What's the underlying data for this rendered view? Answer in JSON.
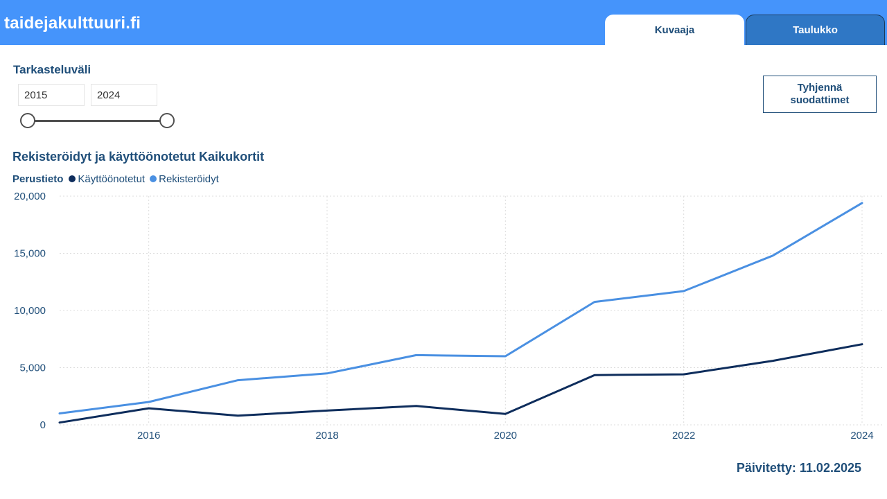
{
  "header": {
    "site_name": "taidejakulttuuri.fi",
    "tabs": [
      {
        "label": "Kuvaaja",
        "active": true
      },
      {
        "label": "Taulukko",
        "active": false
      }
    ]
  },
  "filters": {
    "range_label": "Tarkasteluväli",
    "start_year": "2015",
    "end_year": "2024",
    "clear_button": "Tyhjennä\nsuodattimet"
  },
  "legend": {
    "title": "Perustieto"
  },
  "chart_data": {
    "type": "line",
    "title": "Rekisteröidyt ja käyttöönotetut Kaikukortit",
    "xlabel": "",
    "ylabel": "",
    "x": [
      2015,
      2016,
      2017,
      2018,
      2019,
      2020,
      2021,
      2022,
      2023,
      2024
    ],
    "xticks": [
      "2016",
      "2018",
      "2020",
      "2022",
      "2024"
    ],
    "yticks": [
      "0",
      "5,000",
      "10,000",
      "15,000",
      "20,000"
    ],
    "ylim": [
      0,
      20000
    ],
    "xlim": [
      2015,
      2024
    ],
    "grid": true,
    "legend_position": "top-left",
    "series": [
      {
        "name": "Käyttöönotetut",
        "color": "#0e2d5c",
        "values": [
          200,
          1450,
          800,
          1250,
          1650,
          950,
          4350,
          4420,
          5600,
          7050
        ]
      },
      {
        "name": "Rekisteröidyt",
        "color": "#4a90e2",
        "values": [
          1000,
          2000,
          3900,
          4500,
          6100,
          6000,
          10750,
          11700,
          14800,
          19400
        ]
      }
    ]
  },
  "footer": {
    "updated": "Päivitetty: 11.02.2025"
  }
}
